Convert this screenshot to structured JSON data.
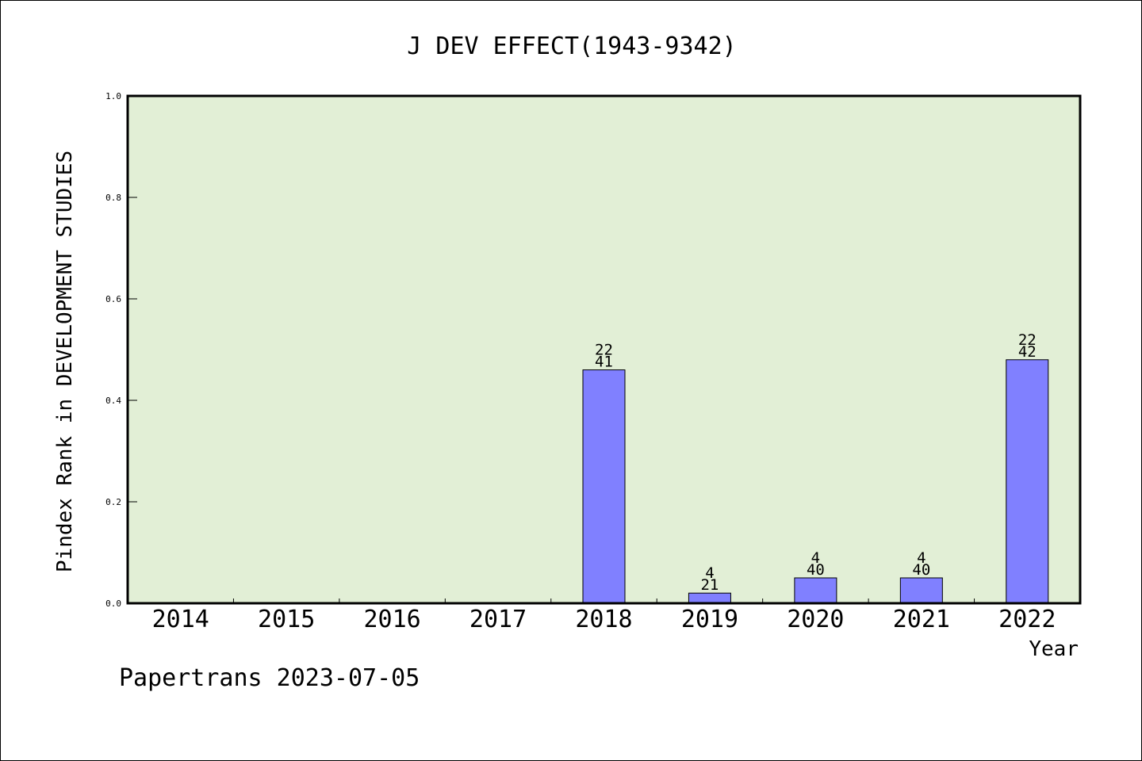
{
  "chart_data": {
    "type": "bar",
    "title": "J DEV EFFECT(1943-9342)",
    "xlabel": "Year",
    "ylabel": "Pindex Rank in DEVELOPMENT STUDIES",
    "footer": "Papertrans 2023-07-05",
    "categories": [
      "2014",
      "2015",
      "2016",
      "2017",
      "2018",
      "2019",
      "2020",
      "2021",
      "2022"
    ],
    "values": [
      null,
      null,
      null,
      null,
      0.46,
      0.02,
      0.05,
      0.05,
      0.48
    ],
    "bar_labels": [
      null,
      null,
      null,
      null,
      {
        "top": "22",
        "bottom": "41"
      },
      {
        "top": "4",
        "bottom": "21"
      },
      {
        "top": "4",
        "bottom": "40"
      },
      {
        "top": "4",
        "bottom": "40"
      },
      {
        "top": "22",
        "bottom": "42"
      }
    ],
    "ylim": [
      0,
      1.0
    ],
    "yticks": [
      "0.0",
      "0.2",
      "0.4",
      "0.6",
      "0.8",
      "1.0"
    ],
    "grid": false,
    "colors": {
      "plot_background": "#e2efd6",
      "bar_fill": "#8080ff",
      "bar_stroke": "#000000",
      "text": "#000000"
    }
  }
}
